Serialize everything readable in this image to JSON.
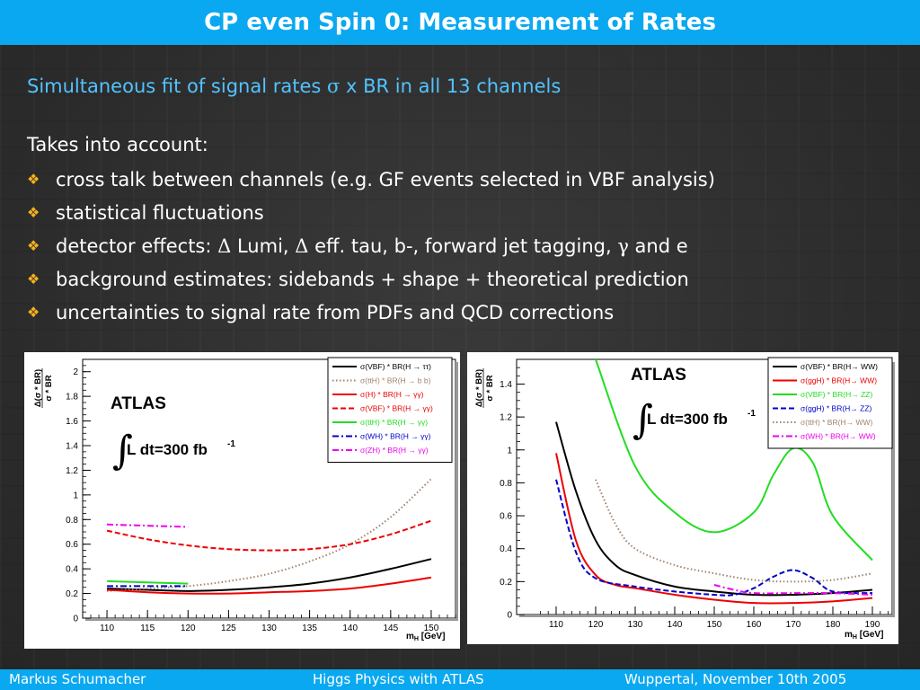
{
  "header": {
    "title": "CP even Spin 0: Measurement of Rates"
  },
  "subtitle": {
    "text_before": "Simultaneous fit of signal rates ",
    "sigma": "σ",
    "text_after": " x BR in all 13 channels"
  },
  "intro": "Takes into account:",
  "bullet_icon": "diamond-cluster-icon",
  "bullets": [
    {
      "text": "cross talk between channels (e.g. GF events selected in VBF analysis)"
    },
    {
      "text": "statistical fluctuations"
    },
    {
      "p1": "detector effects: ",
      "d1": "Δ",
      "p2": " Lumi, ",
      "d2": "Δ",
      "p3": " eff. tau, b-, forward jet tagging, ",
      "g": "γ",
      "p4": " and e"
    },
    {
      "text": "background estimates: sidebands + shape + theoretical prediction"
    },
    {
      "text": "uncertainties to signal rate from PDFs and QCD corrections"
    }
  ],
  "footer": {
    "author": "Markus  Schumacher",
    "talk": "Higgs Physics  with ATLAS",
    "venue": "Wuppertal, November 10th 2005"
  },
  "colors": {
    "title_bar": "#0aa8f0",
    "subtitle": "#52c3ff",
    "bullet": "#f7b21a",
    "background": "#2e2e2e"
  },
  "chart_data": [
    {
      "type": "line",
      "experiment": "ATLAS",
      "luminosity": {
        "prefix": "L dt=300 fb",
        "exponent": "-1"
      },
      "xlabel": {
        "main": "m",
        "sub": "H",
        "unit": " [GeV]"
      },
      "ylabel": {
        "line1": "Δ(σ * BR)",
        "line2": "σ * BR"
      },
      "xlim": [
        107,
        153
      ],
      "ylim": [
        0,
        2.1
      ],
      "x_ticks": [
        110,
        115,
        120,
        125,
        130,
        135,
        140,
        145,
        150
      ],
      "y_ticks": [
        0,
        0.2,
        0.4,
        0.6,
        0.8,
        1,
        1.2,
        1.4,
        1.6,
        1.8,
        2
      ],
      "y_tick_labels": [
        "0",
        "0.2",
        "0.4",
        "0.6",
        "0.8",
        "1",
        "1.2",
        "1.4",
        "1.6",
        "1.8",
        "2"
      ],
      "legend_position": "top-right",
      "series": [
        {
          "name": "σ(VBF) * BR(H → ττ)",
          "color": "#000000",
          "dash": "solid",
          "x": [
            110,
            115,
            120,
            125,
            130,
            135,
            140,
            145,
            150
          ],
          "y": [
            0.24,
            0.23,
            0.22,
            0.23,
            0.25,
            0.28,
            0.33,
            0.4,
            0.48
          ]
        },
        {
          "name": "σ(ttH) * BR(H → b b)",
          "color": "#a0826d",
          "dash": "dotted",
          "x": [
            110,
            115,
            120,
            125,
            130,
            135,
            140,
            145,
            150
          ],
          "y": [
            0.22,
            0.24,
            0.26,
            0.3,
            0.36,
            0.46,
            0.6,
            0.82,
            1.13
          ]
        },
        {
          "name": "σ(H) * BR(H → γγ)",
          "color": "#ee0000",
          "dash": "solid",
          "x": [
            110,
            115,
            120,
            125,
            130,
            135,
            140,
            145,
            150
          ],
          "y": [
            0.23,
            0.21,
            0.2,
            0.2,
            0.21,
            0.22,
            0.24,
            0.28,
            0.33
          ]
        },
        {
          "name": "σ(VBF) * BR(H → γγ)",
          "color": "#ee0000",
          "dash": "dashed",
          "x": [
            110,
            115,
            120,
            125,
            130,
            135,
            140,
            145,
            150
          ],
          "y": [
            0.71,
            0.64,
            0.59,
            0.56,
            0.55,
            0.56,
            0.6,
            0.68,
            0.79
          ]
        },
        {
          "name": "σ(ttH) * BR(H → γγ)",
          "color": "#22dd22",
          "dash": "solid",
          "x": [
            110,
            115,
            120
          ],
          "y": [
            0.3,
            0.29,
            0.28
          ]
        },
        {
          "name": "σ(WH) * BR(H → γγ)",
          "color": "#0000cc",
          "dash": "dashdot",
          "x": [
            110,
            115,
            120
          ],
          "y": [
            0.26,
            0.26,
            0.26
          ]
        },
        {
          "name": "σ(ZH) * BR(H → γγ)",
          "color": "#ee00ee",
          "dash": "dashdot",
          "x": [
            110,
            115,
            120
          ],
          "y": [
            0.76,
            0.75,
            0.74
          ]
        }
      ]
    },
    {
      "type": "line",
      "experiment": "ATLAS",
      "luminosity": {
        "prefix": "L dt=300 fb",
        "exponent": "-1"
      },
      "xlabel": {
        "main": "m",
        "sub": "H",
        "unit": " [GeV]"
      },
      "ylabel": {
        "line1": "Δ(σ * BR)",
        "line2": "σ * BR"
      },
      "xlim": [
        100,
        195
      ],
      "ylim": [
        0,
        1.55
      ],
      "x_ticks": [
        110,
        120,
        130,
        140,
        150,
        160,
        170,
        180,
        190
      ],
      "y_ticks": [
        0,
        0.2,
        0.4,
        0.6,
        0.8,
        1,
        1.2,
        1.4
      ],
      "y_tick_labels": [
        "0",
        "0.2",
        "0.4",
        "0.6",
        "0.8",
        "1",
        "1.2",
        "1.4"
      ],
      "legend_position": "top-right",
      "series": [
        {
          "name": "σ(VBF) * BR(H→ WW)",
          "color": "#000000",
          "dash": "solid",
          "x": [
            110,
            115,
            120,
            125,
            130,
            140,
            150,
            160,
            170,
            180,
            190
          ],
          "y": [
            1.17,
            0.75,
            0.45,
            0.3,
            0.24,
            0.17,
            0.14,
            0.12,
            0.12,
            0.13,
            0.15
          ]
        },
        {
          "name": "σ(ggH) * BR(H→ WW)",
          "color": "#ee0000",
          "dash": "solid",
          "x": [
            110,
            115,
            120,
            125,
            130,
            140,
            150,
            160,
            170,
            180,
            190
          ],
          "y": [
            0.98,
            0.45,
            0.24,
            0.18,
            0.16,
            0.12,
            0.09,
            0.07,
            0.07,
            0.08,
            0.1
          ]
        },
        {
          "name": "σ(VBF) * BR(H→ ZZ)",
          "color": "#22dd22",
          "dash": "solid",
          "x": [
            120,
            130,
            140,
            150,
            160,
            165,
            170,
            175,
            180,
            190
          ],
          "y": [
            1.55,
            0.9,
            0.62,
            0.5,
            0.62,
            0.85,
            1.01,
            0.92,
            0.6,
            0.33
          ]
        },
        {
          "name": "σ(ggH) * BR(H→ ZZ)",
          "color": "#0000cc",
          "dash": "dashed",
          "x": [
            110,
            115,
            120,
            130,
            140,
            150,
            155,
            160,
            165,
            170,
            175,
            180,
            190
          ],
          "y": [
            0.82,
            0.38,
            0.22,
            0.17,
            0.14,
            0.12,
            0.12,
            0.16,
            0.23,
            0.27,
            0.22,
            0.14,
            0.13
          ]
        },
        {
          "name": "σ(ttH) * BR(H→ WW)",
          "color": "#a0826d",
          "dash": "dotted",
          "x": [
            120,
            125,
            130,
            140,
            150,
            160,
            170,
            180,
            190
          ],
          "y": [
            0.82,
            0.55,
            0.4,
            0.3,
            0.25,
            0.21,
            0.2,
            0.21,
            0.25
          ]
        },
        {
          "name": "σ(WH) * BR(H→ WW)",
          "color": "#ee00ee",
          "dash": "dashdot",
          "x": [
            150,
            155,
            160,
            170,
            180,
            190
          ],
          "y": [
            0.18,
            0.15,
            0.13,
            0.13,
            0.13,
            0.12
          ]
        }
      ]
    }
  ]
}
